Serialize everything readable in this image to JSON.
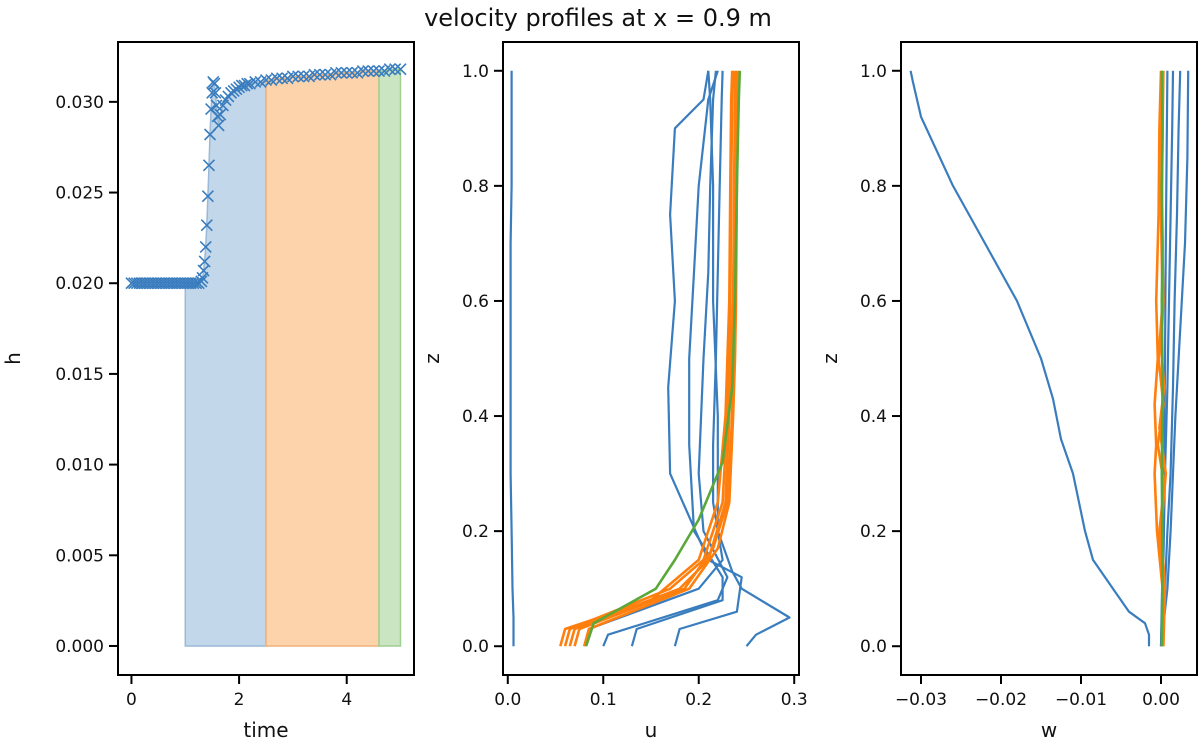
{
  "figure": {
    "title": "velocity profiles at x = 0.9 m"
  },
  "colors": {
    "blue": "#3a7dbe",
    "orange": "#ff7f0e",
    "green": "#5aa83a",
    "fill_blue": "#c2d7ea",
    "fill_orange": "#fdd3ac",
    "fill_green": "#c9e5c1"
  },
  "chart_data": [
    {
      "type": "scatter",
      "xlabel": "time",
      "ylabel": "h",
      "xlim": [
        -0.25,
        5.25
      ],
      "ylim": [
        -0.0016,
        0.0333
      ],
      "xticks": [
        0,
        2,
        4
      ],
      "xtick_labels": [
        "0",
        "2",
        "4"
      ],
      "yticks": [
        0,
        0.005,
        0.01,
        0.015,
        0.02,
        0.025,
        0.03
      ],
      "ytick_labels": [
        "0.000",
        "0.005",
        "0.010",
        "0.015",
        "0.020",
        "0.025",
        "0.030"
      ],
      "marker": "x",
      "series": [
        {
          "x": [
            0,
            0.05,
            0.1,
            0.15,
            0.2,
            0.25,
            0.3,
            0.35,
            0.4,
            0.45,
            0.5,
            0.55,
            0.6,
            0.65,
            0.7,
            0.75,
            0.8,
            0.85,
            0.9,
            0.95,
            1.0,
            1.05,
            1.1,
            1.15,
            1.2,
            1.25,
            1.3,
            1.32,
            1.34,
            1.36,
            1.38,
            1.4,
            1.42,
            1.44,
            1.46,
            1.48,
            1.5,
            1.52,
            1.54,
            1.56,
            1.58,
            1.6,
            1.62,
            1.65,
            1.7,
            1.75,
            1.8,
            1.85,
            1.9,
            1.95,
            2.0,
            2.05,
            2.1,
            2.15,
            2.2,
            2.3,
            2.4,
            2.5,
            2.6,
            2.7,
            2.8,
            2.9,
            3.0,
            3.1,
            3.2,
            3.3,
            3.4,
            3.5,
            3.6,
            3.7,
            3.8,
            3.9,
            4.0,
            4.1,
            4.2,
            4.3,
            4.4,
            4.5,
            4.6,
            4.7,
            4.8,
            4.9,
            5.0
          ],
          "y": [
            0.02,
            0.02,
            0.02,
            0.02,
            0.02,
            0.02,
            0.02,
            0.02,
            0.02,
            0.02,
            0.02,
            0.02,
            0.02,
            0.02,
            0.02,
            0.02,
            0.02,
            0.02,
            0.02,
            0.02,
            0.02,
            0.02,
            0.02,
            0.02,
            0.02,
            0.02,
            0.0201,
            0.0203,
            0.0207,
            0.0212,
            0.022,
            0.0232,
            0.0248,
            0.0265,
            0.0282,
            0.0296,
            0.0305,
            0.0311,
            0.031,
            0.0305,
            0.0298,
            0.0292,
            0.0287,
            0.0293,
            0.0298,
            0.0301,
            0.0303,
            0.0305,
            0.0306,
            0.0307,
            0.0308,
            0.0309,
            0.0309,
            0.031,
            0.031,
            0.0311,
            0.0311,
            0.0312,
            0.0312,
            0.0313,
            0.0313,
            0.0313,
            0.0314,
            0.0314,
            0.0314,
            0.0314,
            0.0315,
            0.0315,
            0.0315,
            0.0315,
            0.0316,
            0.0316,
            0.0316,
            0.0316,
            0.0316,
            0.0317,
            0.0317,
            0.0317,
            0.0317,
            0.0317,
            0.0318,
            0.0318,
            0.0318
          ]
        }
      ],
      "bands": [
        {
          "x0": 1.0,
          "x1": 2.5,
          "color": "blue"
        },
        {
          "x0": 2.5,
          "x1": 4.6,
          "color": "orange"
        },
        {
          "x0": 4.6,
          "x1": 5.0,
          "color": "green"
        }
      ]
    },
    {
      "type": "line",
      "xlabel": "u",
      "ylabel": "z",
      "xlim": [
        -0.005,
        0.305
      ],
      "ylim": [
        -0.05,
        1.05
      ],
      "xticks": [
        0,
        0.1,
        0.2,
        0.3
      ],
      "xtick_labels": [
        "0.0",
        "0.1",
        "0.2",
        "0.3"
      ],
      "yticks": [
        0,
        0.2,
        0.4,
        0.6,
        0.8,
        1.0
      ],
      "ytick_labels": [
        "0.0",
        "0.2",
        "0.4",
        "0.6",
        "0.8",
        "1.0"
      ],
      "series": [
        {
          "color": "blue",
          "x": [
            0.006,
            0.006,
            0.005,
            0.004,
            0.003,
            0.003,
            0.003,
            0.003,
            0.003,
            0.004,
            0.004
          ],
          "y": [
            0.0,
            0.05,
            0.1,
            0.2,
            0.3,
            0.4,
            0.5,
            0.6,
            0.7,
            0.8,
            1.0
          ]
        },
        {
          "color": "blue",
          "x": [
            0.25,
            0.26,
            0.295,
            0.245,
            0.235,
            0.22,
            0.22,
            0.215,
            0.215,
            0.212,
            0.21
          ],
          "y": [
            0.0,
            0.02,
            0.05,
            0.1,
            0.13,
            0.2,
            0.4,
            0.6,
            0.8,
            0.95,
            1.0
          ]
        },
        {
          "color": "blue",
          "x": [
            0.175,
            0.18,
            0.24,
            0.245,
            0.21,
            0.17,
            0.168,
            0.175,
            0.17,
            0.175,
            0.205,
            0.21
          ],
          "y": [
            0.0,
            0.03,
            0.06,
            0.12,
            0.15,
            0.3,
            0.45,
            0.6,
            0.75,
            0.9,
            0.95,
            1.0
          ]
        },
        {
          "color": "blue",
          "x": [
            0.13,
            0.135,
            0.225,
            0.225,
            0.195,
            0.19,
            0.19,
            0.195,
            0.2,
            0.21,
            0.22
          ],
          "y": [
            0.0,
            0.03,
            0.08,
            0.12,
            0.2,
            0.35,
            0.5,
            0.65,
            0.8,
            0.95,
            1.0
          ]
        },
        {
          "color": "blue",
          "x": [
            0.1,
            0.105,
            0.22,
            0.23,
            0.205,
            0.2,
            0.205,
            0.21,
            0.212,
            0.215,
            0.218
          ],
          "y": [
            0.0,
            0.02,
            0.08,
            0.12,
            0.2,
            0.3,
            0.5,
            0.65,
            0.8,
            0.95,
            1.0
          ]
        },
        {
          "color": "blue",
          "x": [
            0.08,
            0.085,
            0.2,
            0.225,
            0.215,
            0.215,
            0.218,
            0.22,
            0.222,
            0.224,
            0.225
          ],
          "y": [
            0.0,
            0.03,
            0.1,
            0.15,
            0.25,
            0.35,
            0.5,
            0.65,
            0.8,
            0.95,
            1.0
          ]
        },
        {
          "color": "orange",
          "x": [
            0.055,
            0.06,
            0.15,
            0.2,
            0.22,
            0.228,
            0.23,
            0.232,
            0.233,
            0.234,
            0.235
          ],
          "y": [
            0.0,
            0.03,
            0.08,
            0.15,
            0.25,
            0.4,
            0.5,
            0.6,
            0.8,
            0.95,
            1.0
          ]
        },
        {
          "color": "orange",
          "x": [
            0.06,
            0.065,
            0.17,
            0.205,
            0.225,
            0.23,
            0.232,
            0.233,
            0.234,
            0.235,
            0.236
          ],
          "y": [
            0.0,
            0.03,
            0.1,
            0.15,
            0.25,
            0.4,
            0.5,
            0.6,
            0.8,
            0.95,
            1.0
          ]
        },
        {
          "color": "orange",
          "x": [
            0.065,
            0.07,
            0.18,
            0.21,
            0.228,
            0.232,
            0.234,
            0.236,
            0.237,
            0.238,
            0.238
          ],
          "y": [
            0.0,
            0.03,
            0.1,
            0.15,
            0.25,
            0.4,
            0.5,
            0.6,
            0.8,
            0.95,
            1.0
          ]
        },
        {
          "color": "orange",
          "x": [
            0.07,
            0.075,
            0.185,
            0.215,
            0.23,
            0.235,
            0.236,
            0.237,
            0.238,
            0.239,
            0.24
          ],
          "y": [
            0.0,
            0.03,
            0.1,
            0.17,
            0.25,
            0.4,
            0.5,
            0.6,
            0.8,
            0.95,
            1.0
          ]
        },
        {
          "color": "orange",
          "x": [
            0.08,
            0.085,
            0.19,
            0.22,
            0.232,
            0.236,
            0.238,
            0.239,
            0.24,
            0.241,
            0.242
          ],
          "y": [
            0.0,
            0.03,
            0.1,
            0.17,
            0.25,
            0.4,
            0.5,
            0.6,
            0.8,
            0.95,
            1.0
          ]
        },
        {
          "color": "green",
          "x": [
            0.082,
            0.09,
            0.155,
            0.175,
            0.2,
            0.225,
            0.235,
            0.238,
            0.24,
            0.242,
            0.243
          ],
          "y": [
            0.0,
            0.04,
            0.1,
            0.15,
            0.22,
            0.32,
            0.45,
            0.6,
            0.8,
            0.95,
            1.0
          ]
        }
      ]
    },
    {
      "type": "line",
      "xlabel": "w",
      "ylabel": "z",
      "xlim": [
        -0.0325,
        0.0045
      ],
      "ylim": [
        -0.05,
        1.05
      ],
      "xticks": [
        -0.03,
        -0.02,
        -0.01,
        0.0
      ],
      "xtick_labels": [
        "−0.03",
        "−0.02",
        "−0.01",
        "0.00"
      ],
      "yticks": [
        0,
        0.2,
        0.4,
        0.6,
        0.8,
        1.0
      ],
      "ytick_labels": [
        "0.0",
        "0.2",
        "0.4",
        "0.6",
        "0.8",
        "1.0"
      ],
      "series": [
        {
          "color": "blue",
          "x": [
            -0.0015,
            -0.0015,
            -0.002,
            -0.004,
            -0.006,
            -0.0085,
            -0.0095,
            -0.011,
            -0.0125,
            -0.0135,
            -0.015,
            -0.018,
            -0.022,
            -0.026,
            -0.03,
            -0.031,
            -0.0313
          ],
          "y": [
            0.0,
            0.02,
            0.04,
            0.06,
            0.1,
            0.15,
            0.2,
            0.3,
            0.36,
            0.43,
            0.5,
            0.6,
            0.7,
            0.8,
            0.92,
            0.98,
            1.0
          ]
        },
        {
          "color": "blue",
          "x": [
            0.0,
            0.0008,
            0.0012,
            0.0015,
            0.0018,
            0.0022,
            0.0026,
            0.003,
            0.0033,
            0.0034
          ],
          "y": [
            0.0,
            0.1,
            0.2,
            0.3,
            0.4,
            0.5,
            0.6,
            0.7,
            0.85,
            1.0
          ]
        },
        {
          "color": "blue",
          "x": [
            0.0,
            0.0005,
            0.0008,
            0.0012,
            0.0015,
            0.0017,
            0.002,
            0.0022,
            0.0024
          ],
          "y": [
            0.0,
            0.1,
            0.2,
            0.3,
            0.45,
            0.6,
            0.75,
            0.9,
            1.0
          ]
        },
        {
          "color": "blue",
          "x": [
            0.0,
            0.0003,
            0.0005,
            0.0008,
            0.001,
            0.0012,
            0.0014,
            0.0015
          ],
          "y": [
            0.0,
            0.15,
            0.3,
            0.45,
            0.6,
            0.75,
            0.9,
            1.0
          ]
        },
        {
          "color": "blue",
          "x": [
            0.0,
            0.0002,
            0.0004,
            0.0005,
            0.0006,
            0.0007,
            0.0008
          ],
          "y": [
            0.0,
            0.15,
            0.3,
            0.5,
            0.7,
            0.85,
            1.0
          ]
        },
        {
          "color": "orange",
          "x": [
            0.0002,
            0.0002,
            -0.0005,
            -0.0008,
            -0.0006,
            -0.0008,
            -0.0004,
            -0.0006,
            -0.0003,
            -0.0002,
            0.0
          ],
          "y": [
            0.0,
            0.1,
            0.2,
            0.3,
            0.35,
            0.42,
            0.5,
            0.6,
            0.75,
            0.9,
            1.0
          ]
        },
        {
          "color": "orange",
          "x": [
            0.0002,
            0.0004,
            -0.0002,
            0.0004,
            -0.0004,
            0.0003,
            -0.0003,
            0.0002,
            0.0,
            0.0001,
            0.0002
          ],
          "y": [
            0.0,
            0.1,
            0.2,
            0.28,
            0.35,
            0.42,
            0.5,
            0.6,
            0.75,
            0.9,
            1.0
          ]
        },
        {
          "color": "orange",
          "x": [
            0.0003,
            0.0005,
            0.0,
            0.0006,
            -0.0002,
            0.0004,
            0.0,
            0.0003,
            0.0001,
            0.0002,
            0.0003
          ],
          "y": [
            0.0,
            0.1,
            0.2,
            0.3,
            0.38,
            0.45,
            0.52,
            0.6,
            0.75,
            0.9,
            1.0
          ]
        },
        {
          "color": "green",
          "x": [
            0.0001,
            0.0002,
            0.0001,
            0.0002,
            0.0001,
            0.0002,
            0.0001,
            0.0002,
            0.0001
          ],
          "y": [
            0.0,
            0.15,
            0.3,
            0.45,
            0.6,
            0.7,
            0.8,
            0.9,
            1.0
          ]
        }
      ]
    }
  ]
}
